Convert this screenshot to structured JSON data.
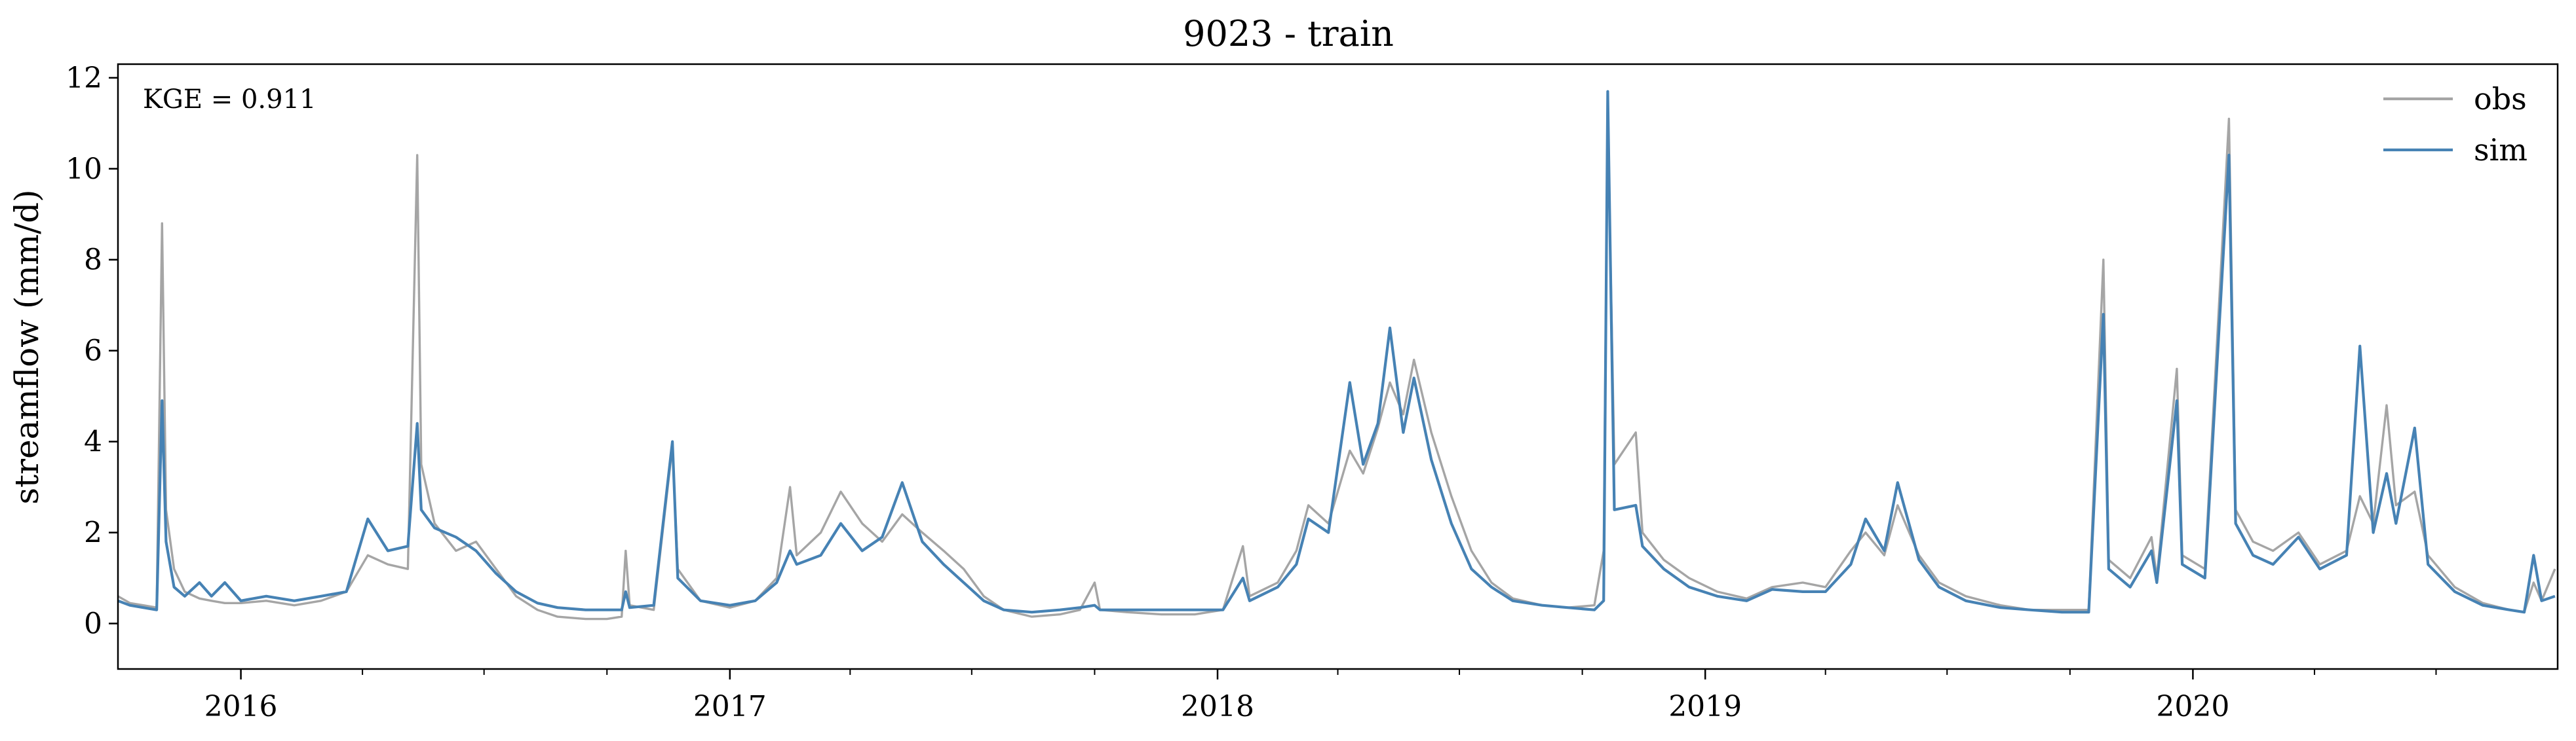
{
  "chart_data": {
    "type": "line",
    "title": "9023 - train",
    "xlabel": "",
    "ylabel": "streamflow (mm/d)",
    "annotation": "KGE = 0.911",
    "xlim": [
      "2015-10-01",
      "2020-09-30"
    ],
    "ylim": [
      -1,
      12.3
    ],
    "yticks": [
      0,
      2,
      4,
      6,
      8,
      10,
      12
    ],
    "xticks": [
      {
        "date": "2016-01-01",
        "label": "2016"
      },
      {
        "date": "2017-01-01",
        "label": "2017"
      },
      {
        "date": "2018-01-01",
        "label": "2018"
      },
      {
        "date": "2019-01-01",
        "label": "2019"
      },
      {
        "date": "2020-01-01",
        "label": "2020"
      }
    ],
    "grid": false,
    "legend_position": "top-right",
    "colors": {
      "obs": "#a5a5a5",
      "sim": "#4682b4"
    },
    "series": [
      {
        "name": "obs",
        "points": [
          [
            "2015-10-01",
            0.6
          ],
          [
            "2015-10-10",
            0.45
          ],
          [
            "2015-10-20",
            0.4
          ],
          [
            "2015-10-30",
            0.35
          ],
          [
            "2015-11-03",
            8.8
          ],
          [
            "2015-11-06",
            2.5
          ],
          [
            "2015-11-12",
            1.2
          ],
          [
            "2015-11-20",
            0.7
          ],
          [
            "2015-12-01",
            0.55
          ],
          [
            "2015-12-10",
            0.5
          ],
          [
            "2015-12-20",
            0.45
          ],
          [
            "2016-01-01",
            0.45
          ],
          [
            "2016-01-20",
            0.5
          ],
          [
            "2016-02-10",
            0.4
          ],
          [
            "2016-03-01",
            0.5
          ],
          [
            "2016-03-20",
            0.7
          ],
          [
            "2016-04-05",
            1.5
          ],
          [
            "2016-04-20",
            1.3
          ],
          [
            "2016-05-05",
            1.2
          ],
          [
            "2016-05-12",
            10.3
          ],
          [
            "2016-05-15",
            3.5
          ],
          [
            "2016-05-25",
            2.2
          ],
          [
            "2016-06-10",
            1.6
          ],
          [
            "2016-06-25",
            1.8
          ],
          [
            "2016-07-10",
            1.2
          ],
          [
            "2016-07-25",
            0.6
          ],
          [
            "2016-08-10",
            0.3
          ],
          [
            "2016-08-25",
            0.15
          ],
          [
            "2016-09-15",
            0.1
          ],
          [
            "2016-10-01",
            0.1
          ],
          [
            "2016-10-12",
            0.15
          ],
          [
            "2016-10-15",
            1.6
          ],
          [
            "2016-10-18",
            0.4
          ],
          [
            "2016-11-05",
            0.3
          ],
          [
            "2016-11-19",
            3.9
          ],
          [
            "2016-11-23",
            1.2
          ],
          [
            "2016-12-10",
            0.5
          ],
          [
            "2017-01-01",
            0.35
          ],
          [
            "2017-01-20",
            0.5
          ],
          [
            "2017-02-05",
            1.0
          ],
          [
            "2017-02-15",
            3.0
          ],
          [
            "2017-02-20",
            1.5
          ],
          [
            "2017-03-10",
            2.0
          ],
          [
            "2017-03-25",
            2.9
          ],
          [
            "2017-04-10",
            2.2
          ],
          [
            "2017-04-25",
            1.8
          ],
          [
            "2017-05-10",
            2.4
          ],
          [
            "2017-05-25",
            2.0
          ],
          [
            "2017-06-10",
            1.6
          ],
          [
            "2017-06-25",
            1.2
          ],
          [
            "2017-07-10",
            0.6
          ],
          [
            "2017-07-25",
            0.3
          ],
          [
            "2017-08-15",
            0.15
          ],
          [
            "2017-09-05",
            0.2
          ],
          [
            "2017-09-20",
            0.3
          ],
          [
            "2017-10-01",
            0.9
          ],
          [
            "2017-10-05",
            0.3
          ],
          [
            "2017-10-25",
            0.25
          ],
          [
            "2017-11-20",
            0.2
          ],
          [
            "2017-12-15",
            0.2
          ],
          [
            "2018-01-05",
            0.3
          ],
          [
            "2018-01-20",
            1.7
          ],
          [
            "2018-01-25",
            0.6
          ],
          [
            "2018-02-15",
            0.9
          ],
          [
            "2018-03-01",
            1.6
          ],
          [
            "2018-03-10",
            2.6
          ],
          [
            "2018-03-25",
            2.2
          ],
          [
            "2018-04-10",
            3.8
          ],
          [
            "2018-04-20",
            3.3
          ],
          [
            "2018-05-01",
            4.3
          ],
          [
            "2018-05-10",
            5.3
          ],
          [
            "2018-05-20",
            4.6
          ],
          [
            "2018-05-28",
            5.8
          ],
          [
            "2018-06-10",
            4.2
          ],
          [
            "2018-06-25",
            2.8
          ],
          [
            "2018-07-10",
            1.6
          ],
          [
            "2018-07-25",
            0.9
          ],
          [
            "2018-08-10",
            0.55
          ],
          [
            "2018-09-01",
            0.4
          ],
          [
            "2018-09-20",
            0.35
          ],
          [
            "2018-10-10",
            0.4
          ],
          [
            "2018-10-17",
            1.6
          ],
          [
            "2018-10-20",
            11.2
          ],
          [
            "2018-10-25",
            3.5
          ],
          [
            "2018-11-10",
            4.2
          ],
          [
            "2018-11-15",
            2.0
          ],
          [
            "2018-12-01",
            1.4
          ],
          [
            "2018-12-20",
            1.0
          ],
          [
            "2019-01-10",
            0.7
          ],
          [
            "2019-02-01",
            0.55
          ],
          [
            "2019-02-20",
            0.8
          ],
          [
            "2019-03-15",
            0.9
          ],
          [
            "2019-04-01",
            0.8
          ],
          [
            "2019-04-20",
            1.6
          ],
          [
            "2019-05-01",
            2.0
          ],
          [
            "2019-05-15",
            1.5
          ],
          [
            "2019-05-25",
            2.6
          ],
          [
            "2019-06-10",
            1.5
          ],
          [
            "2019-06-25",
            0.9
          ],
          [
            "2019-07-15",
            0.6
          ],
          [
            "2019-08-10",
            0.4
          ],
          [
            "2019-09-01",
            0.3
          ],
          [
            "2019-09-25",
            0.3
          ],
          [
            "2019-10-15",
            0.3
          ],
          [
            "2019-10-26",
            8.0
          ],
          [
            "2019-10-30",
            1.4
          ],
          [
            "2019-11-15",
            1.0
          ],
          [
            "2019-12-01",
            1.9
          ],
          [
            "2019-12-05",
            1.0
          ],
          [
            "2019-12-20",
            5.6
          ],
          [
            "2019-12-24",
            1.5
          ],
          [
            "2020-01-10",
            1.2
          ],
          [
            "2020-01-28",
            11.1
          ],
          [
            "2020-02-02",
            2.5
          ],
          [
            "2020-02-15",
            1.8
          ],
          [
            "2020-03-01",
            1.6
          ],
          [
            "2020-03-20",
            2.0
          ],
          [
            "2020-04-05",
            1.3
          ],
          [
            "2020-04-25",
            1.6
          ],
          [
            "2020-05-05",
            2.8
          ],
          [
            "2020-05-15",
            2.2
          ],
          [
            "2020-05-25",
            4.8
          ],
          [
            "2020-06-01",
            2.6
          ],
          [
            "2020-06-15",
            2.9
          ],
          [
            "2020-06-25",
            1.5
          ],
          [
            "2020-07-15",
            0.8
          ],
          [
            "2020-08-05",
            0.45
          ],
          [
            "2020-08-25",
            0.3
          ],
          [
            "2020-09-05",
            0.25
          ],
          [
            "2020-09-12",
            0.9
          ],
          [
            "2020-09-18",
            0.5
          ],
          [
            "2020-09-28",
            1.2
          ]
        ]
      },
      {
        "name": "sim",
        "points": [
          [
            "2015-10-01",
            0.5
          ],
          [
            "2015-10-10",
            0.4
          ],
          [
            "2015-10-20",
            0.35
          ],
          [
            "2015-10-30",
            0.3
          ],
          [
            "2015-11-03",
            4.9
          ],
          [
            "2015-11-06",
            1.8
          ],
          [
            "2015-11-12",
            0.8
          ],
          [
            "2015-11-20",
            0.6
          ],
          [
            "2015-12-01",
            0.9
          ],
          [
            "2015-12-10",
            0.6
          ],
          [
            "2015-12-20",
            0.9
          ],
          [
            "2016-01-01",
            0.5
          ],
          [
            "2016-01-20",
            0.6
          ],
          [
            "2016-02-10",
            0.5
          ],
          [
            "2016-03-01",
            0.6
          ],
          [
            "2016-03-20",
            0.7
          ],
          [
            "2016-04-05",
            2.3
          ],
          [
            "2016-04-20",
            1.6
          ],
          [
            "2016-05-05",
            1.7
          ],
          [
            "2016-05-12",
            4.4
          ],
          [
            "2016-05-15",
            2.5
          ],
          [
            "2016-05-25",
            2.1
          ],
          [
            "2016-06-10",
            1.9
          ],
          [
            "2016-06-25",
            1.6
          ],
          [
            "2016-07-10",
            1.1
          ],
          [
            "2016-07-25",
            0.7
          ],
          [
            "2016-08-10",
            0.45
          ],
          [
            "2016-08-25",
            0.35
          ],
          [
            "2016-09-15",
            0.3
          ],
          [
            "2016-10-01",
            0.3
          ],
          [
            "2016-10-12",
            0.3
          ],
          [
            "2016-10-15",
            0.7
          ],
          [
            "2016-10-18",
            0.35
          ],
          [
            "2016-11-05",
            0.4
          ],
          [
            "2016-11-19",
            4.0
          ],
          [
            "2016-11-23",
            1.0
          ],
          [
            "2016-12-10",
            0.5
          ],
          [
            "2017-01-01",
            0.4
          ],
          [
            "2017-01-20",
            0.5
          ],
          [
            "2017-02-05",
            0.9
          ],
          [
            "2017-02-15",
            1.6
          ],
          [
            "2017-02-20",
            1.3
          ],
          [
            "2017-03-10",
            1.5
          ],
          [
            "2017-03-25",
            2.2
          ],
          [
            "2017-04-10",
            1.6
          ],
          [
            "2017-04-25",
            1.9
          ],
          [
            "2017-05-10",
            3.1
          ],
          [
            "2017-05-25",
            1.8
          ],
          [
            "2017-06-10",
            1.3
          ],
          [
            "2017-06-25",
            0.9
          ],
          [
            "2017-07-10",
            0.5
          ],
          [
            "2017-07-25",
            0.3
          ],
          [
            "2017-08-15",
            0.25
          ],
          [
            "2017-09-05",
            0.3
          ],
          [
            "2017-09-20",
            0.35
          ],
          [
            "2017-10-01",
            0.4
          ],
          [
            "2017-10-05",
            0.3
          ],
          [
            "2017-10-25",
            0.3
          ],
          [
            "2017-11-20",
            0.3
          ],
          [
            "2017-12-15",
            0.3
          ],
          [
            "2018-01-05",
            0.3
          ],
          [
            "2018-01-20",
            1.0
          ],
          [
            "2018-01-25",
            0.5
          ],
          [
            "2018-02-15",
            0.8
          ],
          [
            "2018-03-01",
            1.3
          ],
          [
            "2018-03-10",
            2.3
          ],
          [
            "2018-03-25",
            2.0
          ],
          [
            "2018-04-10",
            5.3
          ],
          [
            "2018-04-20",
            3.5
          ],
          [
            "2018-05-01",
            4.4
          ],
          [
            "2018-05-10",
            6.5
          ],
          [
            "2018-05-20",
            4.2
          ],
          [
            "2018-05-28",
            5.4
          ],
          [
            "2018-06-10",
            3.6
          ],
          [
            "2018-06-25",
            2.2
          ],
          [
            "2018-07-10",
            1.2
          ],
          [
            "2018-07-25",
            0.8
          ],
          [
            "2018-08-10",
            0.5
          ],
          [
            "2018-09-01",
            0.4
          ],
          [
            "2018-09-20",
            0.35
          ],
          [
            "2018-10-10",
            0.3
          ],
          [
            "2018-10-17",
            0.5
          ],
          [
            "2018-10-20",
            11.7
          ],
          [
            "2018-10-25",
            2.5
          ],
          [
            "2018-11-10",
            2.6
          ],
          [
            "2018-11-15",
            1.7
          ],
          [
            "2018-12-01",
            1.2
          ],
          [
            "2018-12-20",
            0.8
          ],
          [
            "2019-01-10",
            0.6
          ],
          [
            "2019-02-01",
            0.5
          ],
          [
            "2019-02-20",
            0.75
          ],
          [
            "2019-03-15",
            0.7
          ],
          [
            "2019-04-01",
            0.7
          ],
          [
            "2019-04-20",
            1.3
          ],
          [
            "2019-05-01",
            2.3
          ],
          [
            "2019-05-15",
            1.6
          ],
          [
            "2019-05-25",
            3.1
          ],
          [
            "2019-06-10",
            1.4
          ],
          [
            "2019-06-25",
            0.8
          ],
          [
            "2019-07-15",
            0.5
          ],
          [
            "2019-08-10",
            0.35
          ],
          [
            "2019-09-01",
            0.3
          ],
          [
            "2019-09-25",
            0.25
          ],
          [
            "2019-10-15",
            0.25
          ],
          [
            "2019-10-26",
            6.8
          ],
          [
            "2019-10-30",
            1.2
          ],
          [
            "2019-11-15",
            0.8
          ],
          [
            "2019-12-01",
            1.6
          ],
          [
            "2019-12-05",
            0.9
          ],
          [
            "2019-12-20",
            4.9
          ],
          [
            "2019-12-24",
            1.3
          ],
          [
            "2020-01-10",
            1.0
          ],
          [
            "2020-01-28",
            10.3
          ],
          [
            "2020-02-02",
            2.2
          ],
          [
            "2020-02-15",
            1.5
          ],
          [
            "2020-03-01",
            1.3
          ],
          [
            "2020-03-20",
            1.9
          ],
          [
            "2020-04-05",
            1.2
          ],
          [
            "2020-04-25",
            1.5
          ],
          [
            "2020-05-05",
            6.1
          ],
          [
            "2020-05-15",
            2.0
          ],
          [
            "2020-05-25",
            3.3
          ],
          [
            "2020-06-01",
            2.2
          ],
          [
            "2020-06-15",
            4.3
          ],
          [
            "2020-06-25",
            1.3
          ],
          [
            "2020-07-15",
            0.7
          ],
          [
            "2020-08-05",
            0.4
          ],
          [
            "2020-08-25",
            0.3
          ],
          [
            "2020-09-05",
            0.25
          ],
          [
            "2020-09-12",
            1.5
          ],
          [
            "2020-09-18",
            0.5
          ],
          [
            "2020-09-28",
            0.6
          ]
        ]
      }
    ]
  }
}
